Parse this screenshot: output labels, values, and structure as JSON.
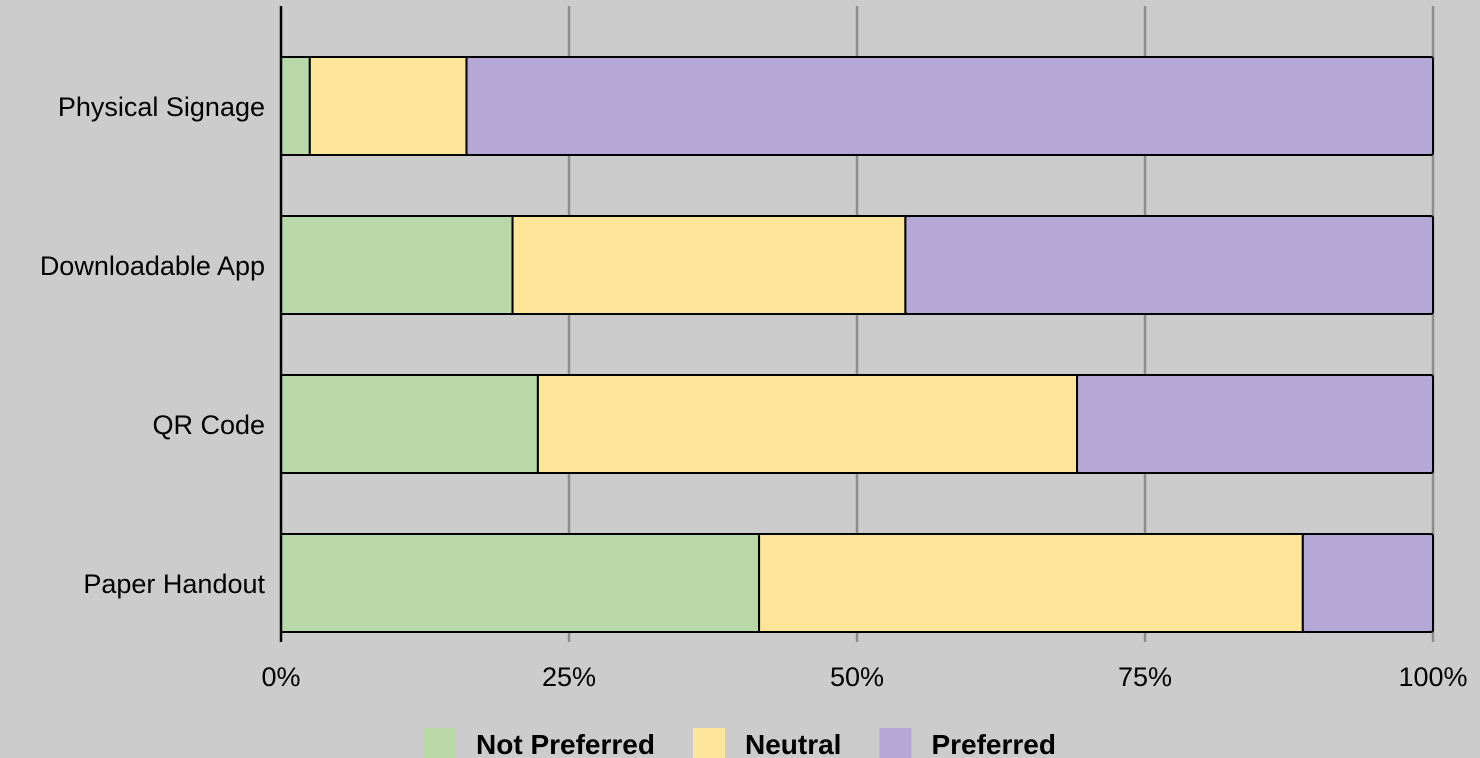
{
  "chart_data": {
    "type": "bar",
    "orientation": "horizontal",
    "stacked": true,
    "normalized": true,
    "title": "",
    "xlabel": "",
    "ylabel": "",
    "xlim": [
      0,
      100
    ],
    "x_ticks": [
      0,
      25,
      50,
      75,
      100
    ],
    "x_tick_labels": [
      "0%",
      "25%",
      "50%",
      "75%",
      "100%"
    ],
    "grid": true,
    "legend_position": "bottom",
    "categories": [
      "Physical Signage",
      "Downloadable App",
      "QR Code",
      "Paper Handout"
    ],
    "series": [
      {
        "name": "Not Preferred",
        "color": "#b8d8a8",
        "values": [
          2.5,
          20.1,
          22.3,
          41.5
        ]
      },
      {
        "name": "Neutral",
        "color": "#fde59a",
        "values": [
          13.6,
          34.1,
          46.8,
          47.2
        ]
      },
      {
        "name": "Preferred",
        "color": "#b5a7d6",
        "values": [
          83.9,
          45.8,
          30.9,
          11.3
        ]
      }
    ]
  }
}
